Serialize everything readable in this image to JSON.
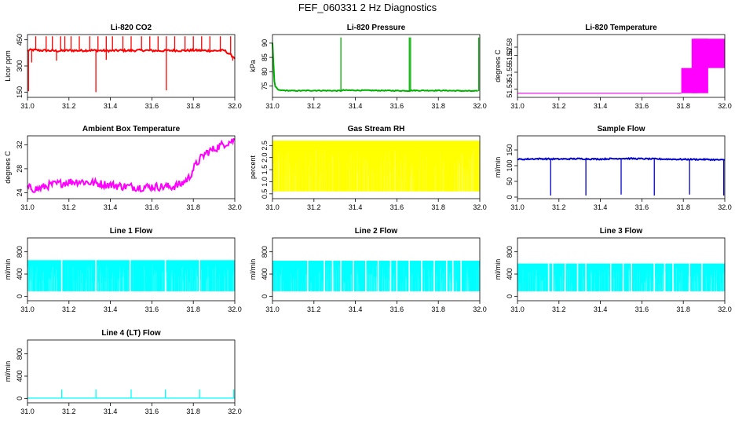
{
  "figure": {
    "title": "FEF_060331  2 Hz Diagnostics"
  },
  "chart_data": [
    {
      "id": "co2",
      "type": "line",
      "title": "Li-820 CO2",
      "ylabel": "Licor ppm",
      "color": "#ff0000",
      "xlim": [
        31.0,
        32.0
      ],
      "ylim": [
        120,
        480
      ],
      "x_ticks": [
        "31.0",
        "31.2",
        "31.4",
        "31.6",
        "31.8",
        "32.0"
      ],
      "y_ticks": [
        {
          "v": 150,
          "t": "150"
        },
        {
          "v": 300,
          "t": "300"
        },
        {
          "v": 450,
          "t": "450"
        }
      ],
      "y_ticks_extra": [
        {
          "v": 380,
          "t": "380"
        }
      ],
      "x": [
        31.0,
        31.02,
        31.05,
        31.1,
        31.15,
        31.2,
        31.25,
        31.3,
        31.35,
        31.4,
        31.45,
        31.5,
        31.55,
        31.6,
        31.65,
        31.7,
        31.75,
        31.8,
        31.85,
        31.9,
        31.95,
        32.0
      ],
      "y": [
        388,
        392,
        390,
        388,
        386,
        389,
        388,
        390,
        388,
        387,
        389,
        388,
        390,
        388,
        387,
        389,
        388,
        390,
        388,
        387,
        389,
        346
      ],
      "band": 6,
      "spikes_up": [
        31.04,
        31.09,
        31.12,
        31.16,
        31.18,
        31.21,
        31.25,
        31.3,
        31.34,
        31.38,
        31.41,
        31.46,
        31.5,
        31.55,
        31.59,
        31.63,
        31.67,
        31.71,
        31.76,
        31.8,
        31.84,
        31.88,
        31.93,
        31.98
      ],
      "spike_up_to": 470,
      "spikes_down": [
        {
          "x": 31.005,
          "y": 155
        },
        {
          "x": 31.33,
          "y": 150
        },
        {
          "x": 31.67,
          "y": 160
        },
        {
          "x": 31.02,
          "y": 320
        },
        {
          "x": 31.14,
          "y": 330
        },
        {
          "x": 31.38,
          "y": 335
        },
        {
          "x": 31.99,
          "y": 330
        }
      ],
      "fill": null
    },
    {
      "id": "pressure",
      "type": "line",
      "title": "Li-820 Pressure",
      "ylabel": "kPa",
      "color": "#00b000",
      "xlim": [
        31.0,
        32.0
      ],
      "ylim": [
        71,
        93
      ],
      "x_ticks": [
        "31.0",
        "31.2",
        "31.4",
        "31.6",
        "31.8",
        "32.0"
      ],
      "y_ticks": [
        {
          "v": 75,
          "t": "75"
        },
        {
          "v": 80,
          "t": "80"
        },
        {
          "v": 85,
          "t": "85"
        },
        {
          "v": 90,
          "t": "90"
        }
      ],
      "x": [
        31.0,
        31.01,
        31.03,
        31.1,
        31.2,
        31.33,
        31.34,
        31.5,
        31.66,
        31.67,
        31.8,
        31.99
      ],
      "y": [
        90,
        75,
        73.5,
        73.3,
        73.4,
        73.3,
        73.5,
        73.4,
        73.3,
        73.4,
        73.4,
        73.2
      ],
      "band": 0.15,
      "spikes_up": [
        31.33,
        31.66,
        31.666,
        31.995
      ],
      "spike_up_to": 92,
      "spikes_down": [],
      "fill": null
    },
    {
      "id": "licor_temp",
      "type": "line",
      "title": "Li-820 Temperature",
      "ylabel": "degrees C",
      "color": "#ff00ff",
      "xlim": [
        31.0,
        32.0
      ],
      "ylim": [
        51.52,
        51.595
      ],
      "x_ticks": [
        "31.0",
        "31.2",
        "31.4",
        "31.6",
        "31.8",
        "32.0"
      ],
      "y_ticks": [
        {
          "v": 51.53,
          "t": "51.53"
        },
        {
          "v": 51.55,
          "t": "51.55"
        },
        {
          "v": 51.57,
          "t": "51.57"
        },
        {
          "v": 51.58,
          "t": "51.58"
        }
      ],
      "x": [
        31.0,
        31.79
      ],
      "y": [
        51.525,
        51.525
      ],
      "band": 0,
      "spikes_up": [],
      "spike_up_to": null,
      "spikes_down": [],
      "fill": [
        {
          "x0": 31.79,
          "x1": 31.87,
          "y0": 51.525,
          "y1": 51.555
        },
        {
          "x0": 31.85,
          "x1": 32.0,
          "y0": 51.555,
          "y1": 51.59
        },
        {
          "x0": 31.84,
          "x1": 31.92,
          "y0": 51.525,
          "y1": 51.59
        }
      ]
    },
    {
      "id": "box_temp",
      "type": "line",
      "title": "Ambient Box Temperature",
      "ylabel": "degrees C",
      "color": "#ff00ff",
      "xlim": [
        31.0,
        32.0
      ],
      "ylim": [
        23,
        33.5
      ],
      "x_ticks": [
        "31.0",
        "31.2",
        "31.4",
        "31.6",
        "31.8",
        "32.0"
      ],
      "y_ticks": [
        {
          "v": 24,
          "t": "24"
        },
        {
          "v": 28,
          "t": "28"
        },
        {
          "v": 32,
          "t": "32"
        }
      ],
      "x": [
        31.0,
        31.05,
        31.1,
        31.15,
        31.2,
        31.25,
        31.3,
        31.35,
        31.4,
        31.45,
        31.5,
        31.55,
        31.6,
        31.65,
        31.7,
        31.74,
        31.78,
        31.8,
        31.83,
        31.86,
        31.9,
        31.95,
        32.0
      ],
      "y": [
        24.8,
        24.6,
        25.2,
        25.5,
        25.8,
        25.9,
        25.7,
        25.5,
        25.3,
        25.1,
        25.0,
        24.9,
        25.0,
        25.0,
        25.0,
        25.4,
        26.5,
        28.0,
        29.5,
        30.6,
        31.3,
        32.2,
        32.8
      ],
      "band": 0.7,
      "spikes_up": [],
      "spike_up_to": null,
      "spikes_down": [],
      "fill": null
    },
    {
      "id": "rh",
      "type": "area",
      "title": "Gas Stream RH",
      "ylabel": "percent",
      "color": "#ffff00",
      "xlim": [
        31.0,
        32.0
      ],
      "ylim": [
        0.3,
        2.9
      ],
      "x_ticks": [
        "31.0",
        "31.2",
        "31.4",
        "31.6",
        "31.8",
        "32.0"
      ],
      "y_ticks": [
        {
          "v": 0.5,
          "t": "0.5"
        },
        {
          "v": 1.0,
          "t": "1.0"
        },
        {
          "v": 1.5,
          "t": "1.5"
        },
        {
          "v": 2.0,
          "t": "2.0"
        },
        {
          "v": 2.5,
          "t": "2.5"
        }
      ],
      "x": [],
      "y": [],
      "band": 0,
      "spikes_up": [],
      "spike_up_to": null,
      "spikes_down": [],
      "fill": [
        {
          "x0": 31.0,
          "x1": 32.0,
          "y0": 0.6,
          "y1": 2.7
        }
      ]
    },
    {
      "id": "sample_flow",
      "type": "line",
      "title": "Sample Flow",
      "ylabel": "ml/min",
      "color": "#0000cc",
      "xlim": [
        31.0,
        32.0
      ],
      "ylim": [
        -5,
        195
      ],
      "x_ticks": [
        "31.0",
        "31.2",
        "31.4",
        "31.6",
        "31.8",
        "32.0"
      ],
      "y_ticks": [
        {
          "v": 0,
          "t": "0"
        },
        {
          "v": 50,
          "t": "50"
        },
        {
          "v": 100,
          "t": "100"
        },
        {
          "v": 150,
          "t": "150"
        }
      ],
      "x": [
        31.0,
        31.1,
        31.2,
        31.3,
        31.4,
        31.5,
        31.6,
        31.7,
        31.8,
        31.9,
        32.0
      ],
      "y": [
        120,
        122,
        121,
        122,
        121,
        123,
        122,
        121,
        120,
        120,
        118
      ],
      "band": 2,
      "spikes_up": [],
      "spike_up_to": null,
      "spikes_down": [
        {
          "x": 31.16,
          "y": 5
        },
        {
          "x": 31.33,
          "y": 5
        },
        {
          "x": 31.5,
          "y": 8
        },
        {
          "x": 31.66,
          "y": 5
        },
        {
          "x": 31.83,
          "y": 8
        },
        {
          "x": 31.995,
          "y": 5
        }
      ],
      "fill": null
    },
    {
      "id": "line1",
      "type": "area",
      "title": "Line 1 Flow",
      "ylabel": "ml/min",
      "color": "#00ffff",
      "xlim": [
        31.0,
        32.0
      ],
      "ylim": [
        -80,
        1050
      ],
      "x_ticks": [
        "31.0",
        "31.2",
        "31.4",
        "31.6",
        "31.8",
        "32.0"
      ],
      "y_ticks": [
        {
          "v": 0,
          "t": "0"
        },
        {
          "v": 400,
          "t": "400"
        },
        {
          "v": 800,
          "t": "800"
        }
      ],
      "x": [],
      "y": [],
      "band": 0,
      "spikes_up": [],
      "spike_up_to": null,
      "spikes_down": [],
      "fill": [
        {
          "x0": 31.0,
          "x1": 32.0,
          "y0": 90,
          "y1": 650
        }
      ],
      "gaps": [
        31.165,
        31.33,
        31.495,
        31.665,
        31.83
      ]
    },
    {
      "id": "line2",
      "type": "area",
      "title": "Line 2 Flow",
      "ylabel": "ml/min",
      "color": "#00ffff",
      "xlim": [
        31.0,
        32.0
      ],
      "ylim": [
        -80,
        1050
      ],
      "x_ticks": [
        "31.0",
        "31.2",
        "31.4",
        "31.6",
        "31.8",
        "32.0"
      ],
      "y_ticks": [
        {
          "v": 0,
          "t": "0"
        },
        {
          "v": 400,
          "t": "400"
        },
        {
          "v": 800,
          "t": "800"
        }
      ],
      "x": [],
      "y": [],
      "band": 0,
      "spikes_up": [],
      "spike_up_to": null,
      "spikes_down": [],
      "fill": [
        {
          "x0": 31.0,
          "x1": 32.0,
          "y0": 90,
          "y1": 640
        }
      ],
      "gaps": [
        31.17,
        31.25,
        31.29,
        31.33,
        31.39,
        31.45,
        31.51,
        31.57,
        31.6,
        31.66,
        31.72,
        31.78,
        31.84,
        31.87,
        31.91
      ]
    },
    {
      "id": "line3",
      "type": "area",
      "title": "Line 3 Flow",
      "ylabel": "ml/min",
      "color": "#00ffff",
      "xlim": [
        31.0,
        32.0
      ],
      "ylim": [
        -80,
        1050
      ],
      "x_ticks": [
        "31.0",
        "31.2",
        "31.4",
        "31.6",
        "31.8",
        "32.0"
      ],
      "y_ticks": [
        {
          "v": 0,
          "t": "0"
        },
        {
          "v": 400,
          "t": "400"
        },
        {
          "v": 800,
          "t": "800"
        }
      ],
      "x": [],
      "y": [],
      "band": 0,
      "spikes_up": [],
      "spike_up_to": null,
      "spikes_down": [],
      "fill": [
        {
          "x0": 31.0,
          "x1": 32.0,
          "y0": 90,
          "y1": 590
        }
      ],
      "gaps": [
        31.15,
        31.17,
        31.23,
        31.29,
        31.33,
        31.45,
        31.51,
        31.55,
        31.66,
        31.71,
        31.75,
        31.83,
        31.89
      ]
    },
    {
      "id": "line4",
      "type": "line",
      "title": "Line 4 (LT) Flow",
      "ylabel": "ml/min",
      "color": "#00ffff",
      "xlim": [
        31.0,
        32.0
      ],
      "ylim": [
        -80,
        1050
      ],
      "x_ticks": [
        "31.0",
        "31.2",
        "31.4",
        "31.6",
        "31.8",
        "32.0"
      ],
      "y_ticks": [
        {
          "v": 0,
          "t": "0"
        },
        {
          "v": 400,
          "t": "400"
        },
        {
          "v": 800,
          "t": "800"
        }
      ],
      "x": [
        31.0,
        32.0
      ],
      "y": [
        5,
        5
      ],
      "band": 0,
      "spikes_up": [
        31.165,
        31.33,
        31.5,
        31.665,
        31.83,
        31.995
      ],
      "spike_up_to": 160,
      "spikes_down": [],
      "fill": null
    }
  ]
}
